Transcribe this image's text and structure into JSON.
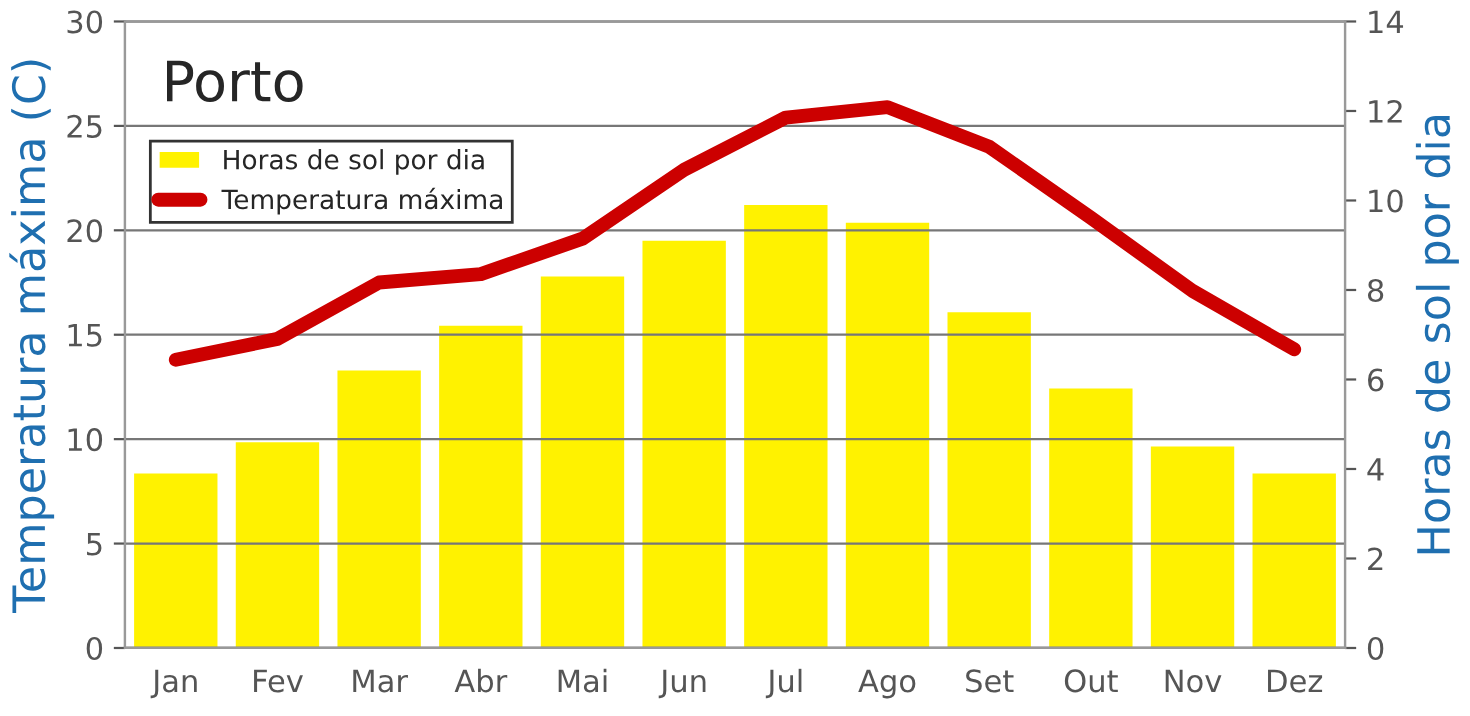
{
  "chart_data": {
    "type": "bar",
    "title": "Porto",
    "ylabel": "Temperatura máxima (C)",
    "y2label": "Horas de sol por dia",
    "categories": [
      "Jan",
      "Fev",
      "Mar",
      "Abr",
      "Mai",
      "Jun",
      "Jul",
      "Ago",
      "Set",
      "Out",
      "Nov",
      "Dez"
    ],
    "series": [
      {
        "name": "Horas de sol por dia",
        "axis": "y2",
        "color": "#fff200",
        "values": [
          3.9,
          4.6,
          6.2,
          7.2,
          8.3,
          9.1,
          9.9,
          9.5,
          7.5,
          5.8,
          4.5,
          3.9
        ]
      },
      {
        "name": "Temperatura máxima",
        "type": "line",
        "color": "#cc0000",
        "values": [
          13.8,
          14.8,
          17.5,
          17.9,
          19.6,
          22.9,
          25.4,
          25.9,
          24.0,
          20.6,
          17.1,
          14.3
        ]
      }
    ],
    "ylim": [
      0,
      30
    ],
    "yticks": [
      0,
      5,
      10,
      15,
      20,
      25,
      30
    ],
    "y2lim": [
      0,
      14
    ],
    "y2ticks": [
      0,
      2,
      4,
      6,
      8,
      10,
      12,
      14
    ],
    "grid": "y",
    "legend": "top left",
    "line_style": "solid",
    "marker": "none"
  }
}
